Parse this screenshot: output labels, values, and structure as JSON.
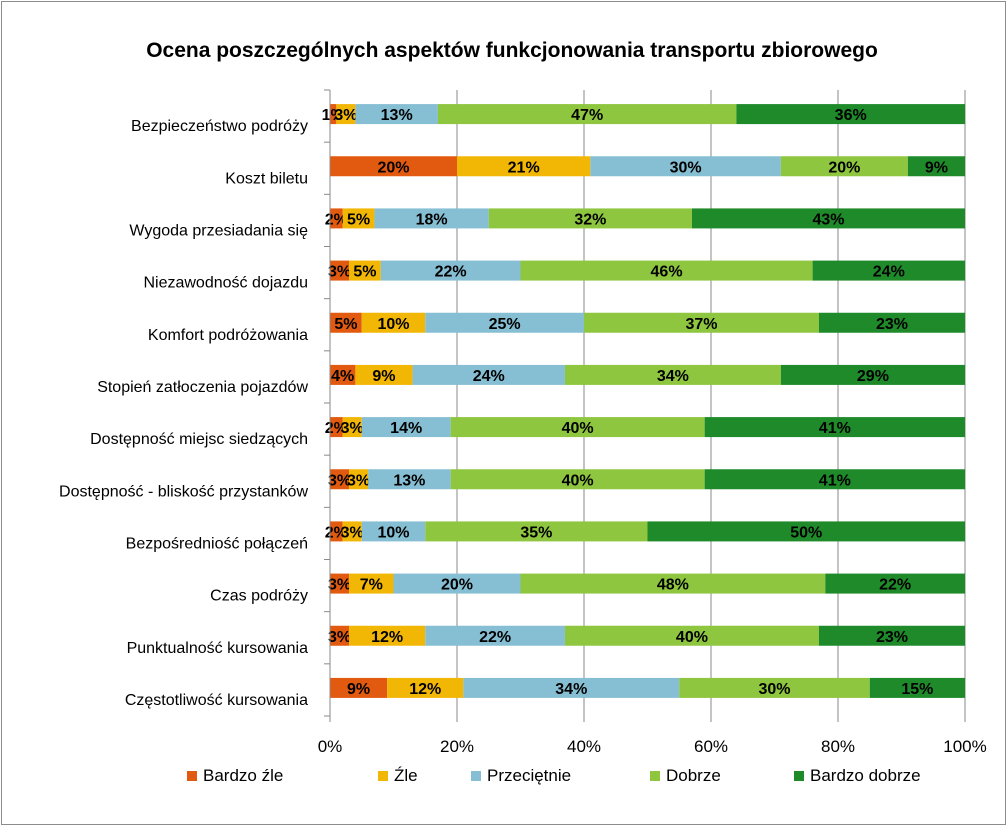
{
  "chart_data": {
    "type": "bar",
    "orientation": "horizontal",
    "stacked": "percent",
    "title": "Ocena poszczególnych aspektów funkcjonowania  transportu zbiorowego",
    "categories": [
      "Bezpieczeństwo podróży",
      "Koszt biletu",
      "Wygoda przesiadania się",
      "Niezawodność dojazdu",
      "Komfort podróżowania",
      "Stopień zatłoczenia pojazdów",
      "Dostępność miejsc siedzących",
      "Dostępność - bliskość przystanków",
      "Bezpośredniość połączeń",
      "Czas podróży",
      "Punktualność kursowania",
      "Częstotliwość kursowania"
    ],
    "series": [
      {
        "name": "Bardzo źle",
        "color": "#e25a0f",
        "values": [
          1,
          20,
          2,
          3,
          5,
          4,
          2,
          3,
          2,
          3,
          3,
          9
        ]
      },
      {
        "name": "Źle",
        "color": "#f2b705",
        "values": [
          3,
          21,
          5,
          5,
          10,
          9,
          3,
          3,
          3,
          7,
          12,
          12
        ]
      },
      {
        "name": "Przeciętnie",
        "color": "#86bfd3",
        "values": [
          13,
          30,
          18,
          22,
          25,
          24,
          14,
          13,
          10,
          20,
          22,
          34
        ]
      },
      {
        "name": "Dobrze",
        "color": "#8ec63f",
        "values": [
          47,
          20,
          32,
          46,
          37,
          34,
          40,
          40,
          35,
          48,
          40,
          30
        ]
      },
      {
        "name": "Bardzo dobrze",
        "color": "#1f8a2a",
        "values": [
          36,
          9,
          43,
          24,
          23,
          29,
          41,
          41,
          50,
          22,
          23,
          15
        ]
      }
    ],
    "xlim": [
      0,
      100
    ],
    "x_ticks": [
      "0%",
      "20%",
      "40%",
      "60%",
      "80%",
      "100%"
    ],
    "grid": "vertical",
    "legend": "bottom",
    "value_suffix": "%"
  }
}
